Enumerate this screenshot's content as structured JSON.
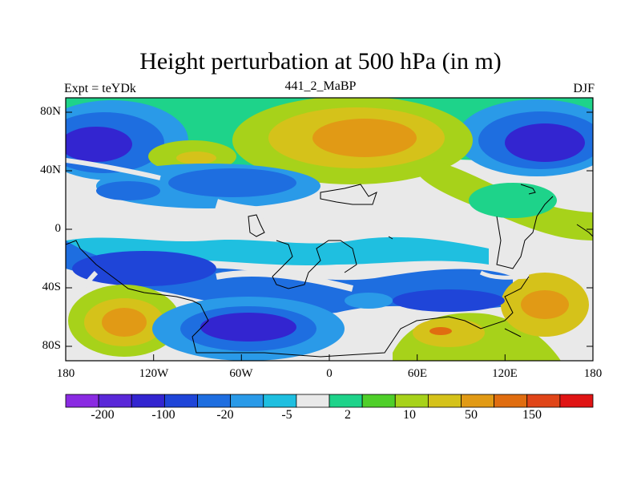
{
  "title": "Height perturbation at 500 hPa (in m)",
  "left_label": "Expt = teYDk",
  "center_label": "441_2_MaBP",
  "right_label": "DJF",
  "lat_ticks": [
    "80N",
    "40N",
    "0",
    "40S",
    "80S"
  ],
  "lon_ticks": [
    "180",
    "120W",
    "60W",
    "0",
    "60E",
    "120E",
    "180"
  ],
  "colorbar": {
    "colors": [
      "#8a2be2",
      "#5a28d8",
      "#3325d0",
      "#1f45d8",
      "#1e6ee0",
      "#2a9ae8",
      "#1fbfe0",
      "#e9e9e9",
      "#1ed38a",
      "#4fcf2a",
      "#a7d21a",
      "#d5c21a",
      "#e19a15",
      "#e06d10",
      "#e04518",
      "#e01414"
    ],
    "labels": [
      "-200",
      "-100",
      "-20",
      "-5",
      "2",
      "10",
      "50",
      "150"
    ]
  }
}
